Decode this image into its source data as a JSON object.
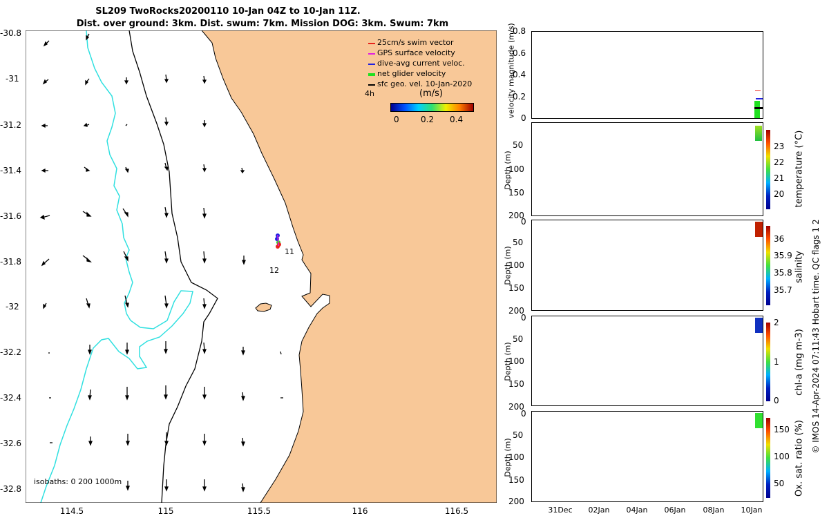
{
  "map": {
    "title_line1": "SL209 TwoRocks20200110 10-Jan 04Z to 10-Jan 11Z.",
    "title_line2": "Dist. over ground: 3km. Dist. swum: 7km. Mission DOG: 3km. Swum: 7km",
    "lon_ticks": [
      "114.5",
      "115",
      "115.5",
      "116",
      "116.5"
    ],
    "lat_ticks": [
      "-30.8",
      "-31",
      "-31.2",
      "-31.4",
      "-31.6",
      "-31.8",
      "-32",
      "-32.2",
      "-32.4",
      "-32.6",
      "-32.8"
    ],
    "legend": [
      {
        "label": "25cm/s swim vector",
        "color": "#e8241c"
      },
      {
        "label": "GPS surface velocity",
        "color": "#e020e0"
      },
      {
        "label": "dive-avg current veloc.",
        "color": "#2020e0"
      },
      {
        "label": "net glider velocity",
        "color": "#20e020"
      },
      {
        "label": "sfc geo. vel. 10-Jan-2020",
        "color": "#000000"
      }
    ],
    "colorbar": {
      "label": "(m/s)",
      "ticks": [
        "0",
        "0.2",
        "0.4"
      ]
    },
    "duration_label": "4h",
    "track_labels": [
      "11",
      "12"
    ],
    "isobath_label": "isobaths: 0   200  1000m",
    "land_color": "#f8c898",
    "isobath_200_color": "#000000",
    "isobath_1000_color": "#30e0e0"
  },
  "right": {
    "velocity": {
      "ylabel": "velocity magnitude (m/s)",
      "yticks": [
        "0.8",
        "0.6",
        "0.4",
        "0.2",
        "0"
      ]
    },
    "depth_panels": [
      {
        "ylabel": "Depth (m)",
        "yticks": [
          "0",
          "50",
          "100",
          "150",
          "200"
        ],
        "cb_label": "temperature (°C)",
        "cb_ticks": [
          "23",
          "22",
          "21",
          "20"
        ]
      },
      {
        "ylabel": "Depth (m)",
        "yticks": [
          "0",
          "50",
          "100",
          "150",
          "200"
        ],
        "cb_label": "salinity",
        "cb_ticks": [
          "36",
          "35.9",
          "35.8",
          "35.7"
        ]
      },
      {
        "ylabel": "Depth (m)",
        "yticks": [
          "0",
          "50",
          "100",
          "150",
          "200"
        ],
        "cb_label": "chl-a (mg m-3)",
        "cb_ticks": [
          "2",
          "1",
          "0"
        ]
      },
      {
        "ylabel": "Depth (m)",
        "yticks": [
          "0",
          "50",
          "100",
          "150",
          "200"
        ],
        "cb_label": "Ox. sat. ratio (%)",
        "cb_ticks": [
          "150",
          "100",
          "50"
        ]
      }
    ],
    "date_ticks": [
      "31Dec",
      "02Jan",
      "04Jan",
      "06Jan",
      "08Jan",
      "10Jan"
    ],
    "footer": "© IMOS 14-Apr-2024 07:11:43 Hobart time. QC flags 1  2"
  }
}
